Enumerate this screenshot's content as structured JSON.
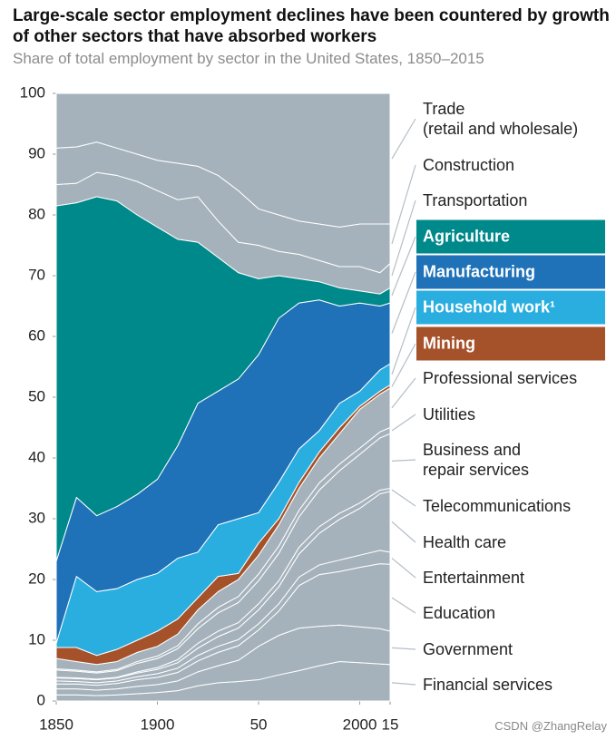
{
  "chart_data": {
    "type": "stacked_area",
    "title": "Large-scale sector employment declines have been countered by growth of other sectors that have absorbed workers",
    "subtitle": "Share of total employment by sector in the United States, 1850–2015",
    "watermark": "CSDN @ZhangRelay",
    "x": [
      1850,
      1860,
      1870,
      1880,
      1890,
      1900,
      1910,
      1920,
      1930,
      1940,
      1950,
      1960,
      1970,
      1980,
      1990,
      2000,
      2010,
      2015
    ],
    "xlim": [
      1850,
      2015
    ],
    "xticks": [
      1850,
      1900,
      {
        "value": 1950,
        "label": "50"
      },
      2000,
      {
        "value": 2015,
        "label": "15"
      }
    ],
    "ylim": [
      0,
      100
    ],
    "yticks": [
      0,
      10,
      20,
      30,
      40,
      50,
      60,
      70,
      80,
      90,
      100
    ],
    "series": [
      {
        "name": "Financial services",
        "color": "#a5b2bb",
        "values": [
          1.0,
          1.0,
          0.9,
          1.0,
          1.2,
          1.4,
          1.7,
          2.5,
          3.0,
          3.2,
          3.5,
          4.3,
          5.0,
          5.8,
          6.5,
          6.3,
          6.1,
          6.0
        ]
      },
      {
        "name": "Government",
        "color": "#a5b2bb",
        "values": [
          1.0,
          1.0,
          0.9,
          1.0,
          1.2,
          1.3,
          1.6,
          2.3,
          2.8,
          3.5,
          5.5,
          6.5,
          7.0,
          6.5,
          6.0,
          5.9,
          5.8,
          5.5
        ]
      },
      {
        "name": "Education",
        "color": "#a5b2bb",
        "values": [
          0.8,
          0.8,
          0.8,
          0.9,
          1.1,
          1.2,
          1.4,
          1.8,
          2.2,
          2.4,
          2.7,
          4.0,
          7.0,
          8.5,
          8.8,
          9.8,
          10.7,
          11.0
        ]
      },
      {
        "name": "Entertainment",
        "color": "#a5b2bb",
        "values": [
          0.5,
          0.4,
          0.4,
          0.4,
          0.5,
          0.6,
          0.7,
          0.9,
          1.0,
          1.0,
          1.0,
          1.2,
          1.4,
          1.6,
          1.9,
          2.0,
          2.2,
          2.0
        ]
      },
      {
        "name": "Health care",
        "color": "#a5b2bb",
        "values": [
          0.5,
          0.5,
          0.5,
          0.5,
          0.6,
          0.7,
          0.9,
          1.2,
          1.6,
          1.9,
          2.3,
          2.8,
          3.8,
          5.2,
          6.7,
          7.7,
          9.3,
          10.0
        ]
      },
      {
        "name": "Telecommunications",
        "color": "#a5b2bb",
        "values": [
          0.1,
          0.1,
          0.1,
          0.1,
          0.2,
          0.3,
          0.5,
          0.8,
          0.9,
          0.9,
          1.0,
          1.0,
          1.1,
          1.1,
          1.0,
          0.9,
          0.6,
          0.5
        ]
      },
      {
        "name": "Business and\nrepair services",
        "color": "#a5b2bb",
        "values": [
          1.2,
          1.1,
          1.0,
          1.1,
          1.4,
          1.5,
          1.8,
          2.4,
          3.0,
          3.3,
          3.8,
          4.5,
          5.0,
          6.0,
          7.0,
          8.0,
          8.6,
          9.0
        ]
      },
      {
        "name": "Utilities",
        "color": "#a5b2bb",
        "values": [
          0.2,
          0.2,
          0.2,
          0.2,
          0.3,
          0.4,
          0.5,
          0.8,
          0.9,
          1.0,
          1.1,
          1.2,
          1.1,
          1.2,
          1.1,
          1.0,
          1.0,
          1.0
        ]
      },
      {
        "name": "Professional services",
        "color": "#a5b2bb",
        "values": [
          1.7,
          1.4,
          1.2,
          1.3,
          1.5,
          1.6,
          1.9,
          2.3,
          2.6,
          2.8,
          3.1,
          3.5,
          3.6,
          4.1,
          5.0,
          6.4,
          6.2,
          6.5
        ]
      },
      {
        "name": "Mining",
        "color": "#a5522a",
        "highlight": true,
        "values": [
          1.8,
          2.3,
          1.5,
          2.0,
          2.0,
          2.5,
          2.5,
          2.0,
          2.5,
          1.0,
          2.0,
          1.0,
          1.0,
          1.0,
          1.0,
          0.5,
          0.5,
          0.5
        ]
      },
      {
        "name": "Household work¹",
        "color": "#2aaee0",
        "highlight": true,
        "values": [
          0.7,
          11.7,
          10.5,
          10.0,
          10.0,
          9.5,
          10.0,
          7.5,
          8.5,
          9.0,
          5.0,
          6.0,
          5.5,
          3.5,
          4.0,
          2.5,
          3.5,
          3.5
        ]
      },
      {
        "name": "Manufacturing",
        "color": "#1f72b8",
        "highlight": true,
        "values": [
          13.5,
          13.0,
          12.5,
          13.5,
          14.0,
          15.5,
          18.5,
          24.5,
          22.0,
          23.0,
          26.0,
          27.0,
          24.0,
          21.5,
          16.0,
          14.5,
          10.5,
          10.0
        ]
      },
      {
        "name": "Agriculture",
        "color": "#00898a",
        "highlight": true,
        "values": [
          58.5,
          48.5,
          52.5,
          50.3,
          46.0,
          41.5,
          34.0,
          26.5,
          22.0,
          17.5,
          12.5,
          7.0,
          4.0,
          3.0,
          3.0,
          2.0,
          2.0,
          2.5
        ]
      },
      {
        "name": "Transportation",
        "color": "#a5b2bb",
        "values": [
          3.5,
          3.2,
          4.0,
          4.2,
          5.5,
          6.0,
          6.5,
          7.5,
          6.0,
          5.0,
          5.5,
          4.0,
          4.0,
          3.5,
          3.5,
          4.0,
          3.5,
          4.0
        ]
      },
      {
        "name": "Construction",
        "color": "#a5b2bb",
        "values": [
          6.0,
          6.0,
          5.0,
          4.5,
          4.5,
          5.0,
          6.0,
          5.0,
          7.5,
          8.5,
          6.0,
          6.0,
          5.5,
          6.0,
          6.5,
          7.0,
          8.0,
          6.5
        ]
      },
      {
        "name": "Trade\n(retail and wholesale)",
        "color": "#a5b2bb",
        "values": [
          9.0,
          8.8,
          8.0,
          9.0,
          10.0,
          11.0,
          11.5,
          12.0,
          13.5,
          16.0,
          19.0,
          20.0,
          21.0,
          21.5,
          22.0,
          21.5,
          21.5,
          21.5
        ]
      }
    ]
  }
}
